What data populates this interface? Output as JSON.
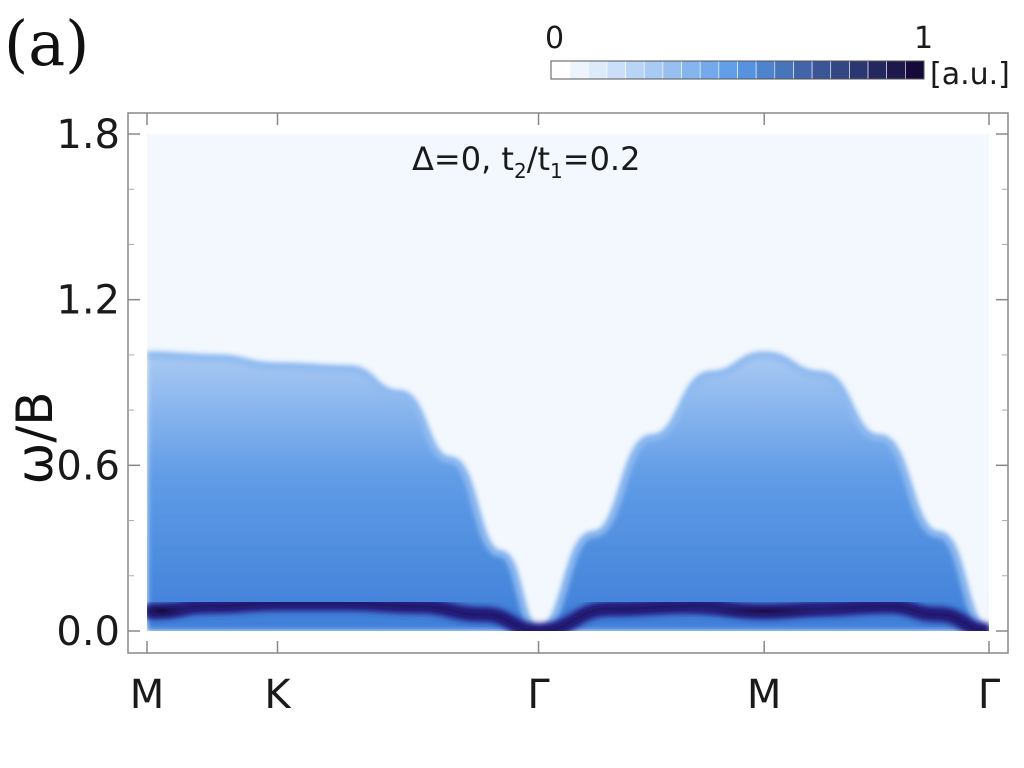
{
  "panel_label": "(a)",
  "chart_data": {
    "type": "heatmap",
    "title": "",
    "annotation": {
      "delta_text": "Δ=0, ",
      "t2": "t",
      "t2_sub": "2",
      "slash": "/",
      "t1": "t",
      "t1_sub": "1",
      "ratio_text": "=0.2"
    },
    "ylabel": "ω/B",
    "xlabel": "",
    "ylim": [
      0.0,
      1.8
    ],
    "yticks": [
      {
        "value": 0.0,
        "label": "0.0"
      },
      {
        "value": 0.6,
        "label": "0.6"
      },
      {
        "value": 1.2,
        "label": "1.2"
      },
      {
        "value": 1.8,
        "label": "1.8"
      }
    ],
    "xticks": [
      {
        "pos": 0.0,
        "label": "M"
      },
      {
        "pos": 0.155,
        "label": "K"
      },
      {
        "pos": 0.465,
        "label": "Γ"
      },
      {
        "pos": 0.733,
        "label": "M"
      },
      {
        "pos": 1.0,
        "label": "Γ"
      }
    ],
    "colorbar": {
      "min_label": "0",
      "max_label": "1",
      "unit": "[a.u.]",
      "range": [
        0,
        1
      ],
      "levels": 20,
      "color_low": "#ffffff",
      "color_mid": "#5a9ae8",
      "color_high": "#160a3a"
    },
    "upper_edge": [
      [
        0.0,
        1.0
      ],
      [
        0.08,
        0.99
      ],
      [
        0.155,
        0.96
      ],
      [
        0.24,
        0.95
      ],
      [
        0.3,
        0.86
      ],
      [
        0.36,
        0.62
      ],
      [
        0.42,
        0.28
      ],
      [
        0.465,
        0.0
      ],
      [
        0.53,
        0.35
      ],
      [
        0.6,
        0.7
      ],
      [
        0.67,
        0.93
      ],
      [
        0.733,
        1.0
      ],
      [
        0.8,
        0.93
      ],
      [
        0.87,
        0.7
      ],
      [
        0.94,
        0.35
      ],
      [
        1.0,
        0.0
      ]
    ],
    "dark_band": [
      [
        0.0,
        0.07
      ],
      [
        0.08,
        0.09
      ],
      [
        0.155,
        0.1
      ],
      [
        0.24,
        0.1
      ],
      [
        0.32,
        0.09
      ],
      [
        0.4,
        0.06
      ],
      [
        0.465,
        0.0
      ],
      [
        0.55,
        0.08
      ],
      [
        0.65,
        0.09
      ],
      [
        0.733,
        0.07
      ],
      [
        0.8,
        0.08
      ],
      [
        0.88,
        0.09
      ],
      [
        0.94,
        0.06
      ],
      [
        1.0,
        0.0
      ]
    ]
  }
}
